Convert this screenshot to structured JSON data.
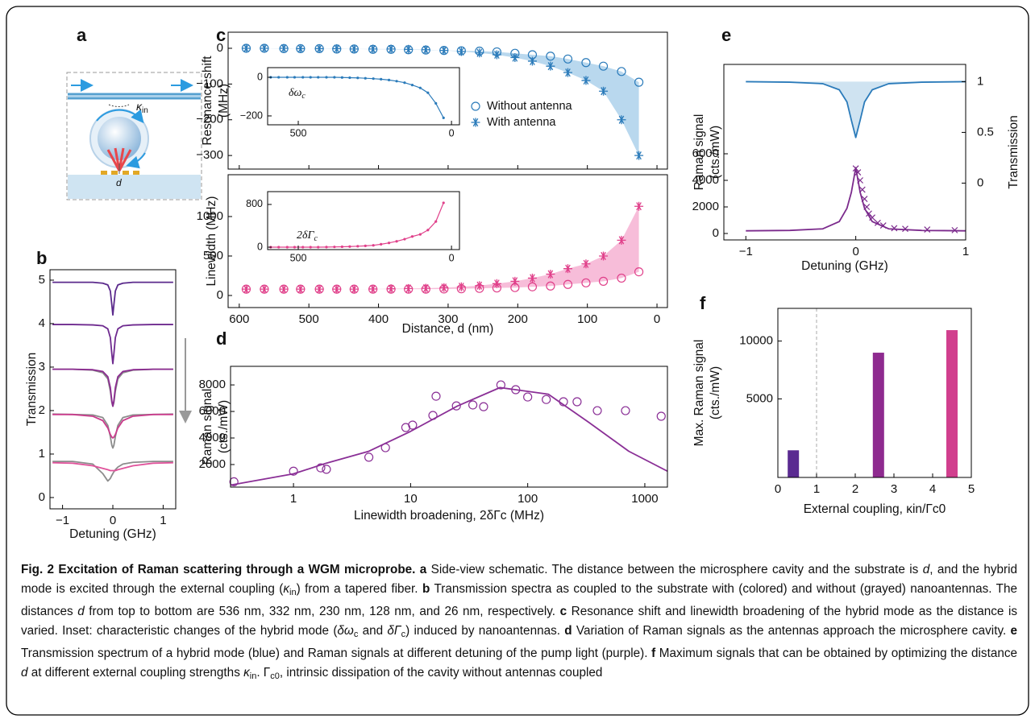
{
  "schematic": {
    "panel": "a",
    "kappa": "κ",
    "kappa_sub": "in",
    "distance": "d"
  },
  "chart_data": [
    {
      "type": "line",
      "panel": "b",
      "xlabel": "Detuning (GHz)",
      "ylabel": "Transmission",
      "x": [
        -1.2,
        -0.8,
        -0.4,
        -0.2,
        -0.1,
        -0.05,
        -0.02,
        0,
        0.02,
        0.05,
        0.1,
        0.2,
        0.4,
        0.8,
        1.2
      ],
      "xlim": [
        -1.25,
        1.25
      ],
      "xticks": [
        {
          "value": -1,
          "label": "−1"
        },
        0,
        1
      ],
      "ylim": [
        -0.26,
        5.24
      ],
      "yticks": [
        0,
        1,
        2,
        3,
        4,
        5
      ],
      "series": [
        {
          "color": "#8c8c8c",
          "values": [
            2.95,
            2.95,
            2.93,
            2.87,
            2.73,
            2.45,
            2.18,
            2.1,
            2.18,
            2.45,
            2.73,
            2.87,
            2.93,
            2.95,
            2.95
          ]
        },
        {
          "color": "#8c8c8c",
          "values": [
            1.92,
            1.91,
            1.9,
            1.84,
            1.66,
            1.4,
            1.2,
            1.14,
            1.2,
            1.4,
            1.66,
            1.84,
            1.9,
            1.91,
            1.92
          ]
        },
        {
          "color": "#8c8c8c",
          "values": [
            0.83,
            0.83,
            0.77,
            0.55,
            0.38,
            0.44,
            0.51,
            0.55,
            0.59,
            0.64,
            0.7,
            0.77,
            0.81,
            0.83,
            0.83
          ]
        },
        {
          "color": "#5b2a8c",
          "values": [
            4.95,
            4.95,
            4.95,
            4.93,
            4.89,
            4.75,
            4.43,
            4.2,
            4.43,
            4.75,
            4.89,
            4.93,
            4.95,
            4.95,
            4.95
          ]
        },
        {
          "color": "#6e2a8f",
          "values": [
            3.98,
            3.98,
            3.97,
            3.95,
            3.88,
            3.68,
            3.3,
            3.08,
            3.3,
            3.68,
            3.88,
            3.95,
            3.97,
            3.98,
            3.98
          ]
        },
        {
          "color": "#8b2b90",
          "values": [
            2.95,
            2.95,
            2.94,
            2.9,
            2.78,
            2.53,
            2.22,
            2.1,
            2.22,
            2.53,
            2.78,
            2.9,
            2.94,
            2.95,
            2.95
          ]
        },
        {
          "color": "#c93c8c",
          "values": [
            1.91,
            1.91,
            1.87,
            1.77,
            1.6,
            1.45,
            1.39,
            1.37,
            1.39,
            1.45,
            1.6,
            1.77,
            1.87,
            1.91,
            1.91
          ]
        },
        {
          "color": "#e0529b",
          "values": [
            0.8,
            0.79,
            0.73,
            0.67,
            0.64,
            0.62,
            0.62,
            0.62,
            0.62,
            0.62,
            0.64,
            0.67,
            0.73,
            0.79,
            0.8
          ]
        }
      ]
    },
    {
      "type": "scatter",
      "panel": "c",
      "ylabel": [
        "Resonance shift",
        "(MHz)"
      ],
      "x": [
        590,
        564,
        536,
        512,
        485,
        460,
        435,
        408,
        382,
        357,
        332,
        306,
        281,
        255,
        230,
        204,
        179,
        153,
        128,
        102,
        77,
        51,
        26
      ],
      "xlim": [
        616,
        -15
      ],
      "ylim": [
        -338,
        45
      ],
      "yticks": [
        {
          "value": -300,
          "label": "−300"
        },
        {
          "value": -200,
          "label": "−200"
        },
        {
          "value": -100,
          "label": "−100"
        },
        0
      ],
      "fill_between": true,
      "fill_color": "#b9d8ee",
      "series": [
        {
          "name": "Without antenna",
          "marker": "circle",
          "color": "#2b7bba",
          "values": [
            0,
            0,
            -1,
            -1,
            -1,
            -2,
            -2,
            -3,
            -3,
            -4,
            -5,
            -6,
            -7,
            -8,
            -10,
            -14,
            -18,
            -22,
            -30,
            -40,
            -50,
            -65,
            -95
          ]
        },
        {
          "name": "With antenna",
          "marker": "star",
          "color": "#2b7bba",
          "values": [
            0,
            0,
            0,
            -1,
            -1,
            -1,
            -2,
            -2,
            -2,
            -3,
            -4,
            -6,
            -9,
            -13,
            -18,
            -26,
            -36,
            -50,
            -68,
            -90,
            -120,
            -200,
            -300
          ]
        }
      ],
      "inset": {
        "label": {
          "text": "δω",
          "sub": "c"
        },
        "xlim": [
          600,
          -26
        ],
        "xticks": [
          500,
          0
        ],
        "ylim": [
          -246,
          50
        ],
        "yticks": [
          {
            "value": -200,
            "label": "−200"
          },
          0
        ],
        "series": [
          {
            "marker": "dotline",
            "color": "#2b7bba",
            "values": [
              0,
              0,
              0,
              0,
              0,
              0,
              0,
              0,
              0,
              -1,
              -2,
              -3,
              -5,
              -7,
              -10,
              -14,
              -20,
              -28,
              -40,
              -55,
              -80,
              -135,
              -210
            ]
          }
        ]
      }
    },
    {
      "type": "scatter",
      "ylabel": "Linewidth (MHz)",
      "xlabel": "Distance, d (nm)",
      "x": [
        590,
        564,
        536,
        512,
        485,
        460,
        435,
        408,
        382,
        357,
        332,
        306,
        281,
        255,
        230,
        204,
        179,
        153,
        128,
        102,
        77,
        51,
        26
      ],
      "xlim": [
        616,
        -15
      ],
      "xticks": [
        600,
        500,
        400,
        300,
        200,
        100,
        0
      ],
      "ylim": [
        -153,
        1530
      ],
      "yticks": [
        0,
        500,
        1000
      ],
      "fill_between": true,
      "fill_color": "#f7bdd9",
      "series": [
        {
          "marker": "circle",
          "color": "#e0408a",
          "values": [
            80,
            80,
            80,
            80,
            80,
            80,
            80,
            80,
            80,
            80,
            80,
            82,
            85,
            90,
            95,
            100,
            110,
            120,
            140,
            160,
            180,
            220,
            300
          ]
        },
        {
          "marker": "star",
          "color": "#e0408a",
          "values": [
            80,
            80,
            80,
            80,
            80,
            80,
            80,
            82,
            85,
            88,
            92,
            100,
            110,
            125,
            150,
            180,
            220,
            270,
            340,
            400,
            500,
            700,
            1130
          ]
        }
      ],
      "inset": {
        "label": {
          "text": "2δΓ",
          "sub": "c"
        },
        "xlim": [
          600,
          -26
        ],
        "xticks": [
          500,
          0
        ],
        "ylim": [
          -45,
          1040
        ],
        "yticks": [
          0,
          800
        ],
        "series": [
          {
            "marker": "dotline",
            "color": "#e0408a",
            "values": [
              0,
              0,
              0,
              0,
              0,
              0,
              0,
              2,
              5,
              8,
              12,
              18,
              25,
              35,
              55,
              80,
              110,
              150,
              200,
              240,
              320,
              480,
              830
            ]
          }
        ]
      }
    },
    {
      "type": "scatter",
      "panel": "d",
      "xscale": "log",
      "xlabel": "Linewidth broadening, 2δΓc (MHz)",
      "ylabel": [
        "Raman signal",
        "(cts./mW)"
      ],
      "xlim": [
        0.29,
        1560
      ],
      "xticks": [
        1,
        10,
        100,
        1000
      ],
      "ylim": [
        300,
        9400
      ],
      "yticks": [
        2000,
        4000,
        6000,
        8000
      ],
      "series": [
        {
          "marker": "circle",
          "color": "#8a2f96",
          "x": [
            0.31,
            1.0,
            1.71,
            1.91,
            4.4,
            6.1,
            9.1,
            10.4,
            15.5,
            16.5,
            24.6,
            34,
            42,
            59,
            79,
            100,
            144,
            202,
            264,
            393,
            684,
            1380
          ],
          "values": [
            700,
            1500,
            1750,
            1640,
            2550,
            3270,
            4790,
            4970,
            5700,
            7150,
            6420,
            6490,
            6360,
            8000,
            7640,
            7090,
            6900,
            6730,
            6730,
            6060,
            6060,
            5640
          ]
        },
        {
          "marker": "line",
          "color": "#8a2f96",
          "x": [
            0.29,
            1,
            1.9,
            4.4,
            10,
            25,
            58,
            150,
            330,
            730,
            1560
          ],
          "values": [
            450,
            1300,
            2100,
            3000,
            4500,
            6400,
            7800,
            7300,
            5200,
            3000,
            1500
          ]
        }
      ]
    },
    {
      "type": "line",
      "panel": "e",
      "xlabel": "Detuning (GHz)",
      "ylabel": [
        "Raman signal",
        "(cts./mW)"
      ],
      "y2label": "Transmission",
      "x": [
        -1,
        -0.6,
        -0.3,
        -0.15,
        -0.08,
        -0.04,
        0,
        0.04,
        0.08,
        0.15,
        0.3,
        0.6,
        1
      ],
      "xlim": [
        -1.2,
        1
      ],
      "xticks": [
        {
          "value": -1,
          "label": "−1"
        },
        0,
        1
      ],
      "ylim": [
        -485,
        12727
      ],
      "yticks": [
        0,
        2000,
        4000,
        6000
      ],
      "y2lim": [
        -0.56,
        1.17
      ],
      "y2ticks": [
        0,
        0.5,
        1
      ],
      "series": [
        {
          "axis": "y2",
          "marker": "line",
          "fill": true,
          "color": "#2b7bba",
          "fill_color": "#cfe3f1",
          "values": [
            1,
            0.995,
            0.98,
            0.92,
            0.8,
            0.62,
            0.45,
            0.62,
            0.8,
            0.92,
            0.98,
            0.995,
            1
          ]
        },
        {
          "marker": "line",
          "color": "#7b2a8c",
          "values": [
            200,
            230,
            350,
            900,
            1900,
            3100,
            4950,
            3100,
            1900,
            900,
            350,
            230,
            200
          ]
        },
        {
          "marker": "cross",
          "color": "#7b2a8c",
          "x": [
            0,
            0.02,
            0.04,
            0.06,
            0.08,
            0.1,
            0.12,
            0.15,
            0.2,
            0.25,
            0.35,
            0.45,
            0.65,
            0.9
          ],
          "values": [
            4900,
            4600,
            4000,
            3300,
            2600,
            2000,
            1500,
            1200,
            800,
            600,
            400,
            350,
            300,
            250
          ]
        }
      ]
    },
    {
      "type": "bar",
      "panel": "f",
      "xlabel": "External coupling, κin/Γc0",
      "ylabel": [
        "Max. Raman signal",
        "(cts./mW)"
      ],
      "yscale": "log",
      "x": [
        0.4,
        2.6,
        4.5
      ],
      "values": [
        2700,
        8700,
        11400
      ],
      "colors": [
        "#5a2a91",
        "#8e2a8f",
        "#d13f8e"
      ],
      "xlim": [
        0,
        5
      ],
      "xticks": [
        0,
        1,
        2,
        3,
        4,
        5
      ],
      "ylim": [
        1950,
        14800
      ],
      "yticks": [
        5000,
        10000
      ],
      "vline": 1
    }
  ],
  "caption": [
    {
      "text": "Fig. 2 Excitation of Raman scattering through a WGM microprobe. a",
      "style": "b"
    },
    {
      "text": " Side-view schematic. The distance between the microsphere cavity and the substrate is "
    },
    {
      "text": "d",
      "style": "i"
    },
    {
      "text": ", and the hybrid mode is excited through the external coupling ("
    },
    {
      "text": "κ",
      "style": "i"
    },
    {
      "text": "in",
      "style": "sub"
    },
    {
      "text": ") from a tapered fiber. "
    },
    {
      "text": "b",
      "style": "b"
    },
    {
      "text": " Transmission spectra as coupled to the substrate with (colored) and without (grayed) nanoantennas. The distances "
    },
    {
      "text": "d",
      "style": "i"
    },
    {
      "text": " from top to bottom are 536 nm, 332 nm, 230 nm, 128 nm, and 26 nm, respectively. "
    },
    {
      "text": "c",
      "style": "b"
    },
    {
      "text": " Resonance shift and linewidth broadening of the hybrid mode as the distance is varied. Inset: characteristic changes of the hybrid mode ("
    },
    {
      "text": "δω",
      "style": "i"
    },
    {
      "text": "c",
      "style": "sub"
    },
    {
      "text": " and "
    },
    {
      "text": "δΓ",
      "style": "i"
    },
    {
      "text": "c",
      "style": "sub"
    },
    {
      "text": ") induced by nanoantennas. "
    },
    {
      "text": "d",
      "style": "b"
    },
    {
      "text": " Variation of Raman signals as the antennas approach the microsphere cavity. "
    },
    {
      "text": "e",
      "style": "b"
    },
    {
      "text": " Transmission spectrum of a hybrid mode (blue) and Raman signals at different detuning of the pump light (purple). "
    },
    {
      "text": "f",
      "style": "b"
    },
    {
      "text": " Maximum signals that can be obtained by optimizing the distance "
    },
    {
      "text": "d",
      "style": "i"
    },
    {
      "text": " at different external coupling strengths "
    },
    {
      "text": "κ",
      "style": "i"
    },
    {
      "text": "in",
      "style": "sub"
    },
    {
      "text": ". Γ"
    },
    {
      "text": "c0",
      "style": "sub"
    },
    {
      "text": ", intrinsic dissipation of the cavity without antennas coupled"
    }
  ]
}
